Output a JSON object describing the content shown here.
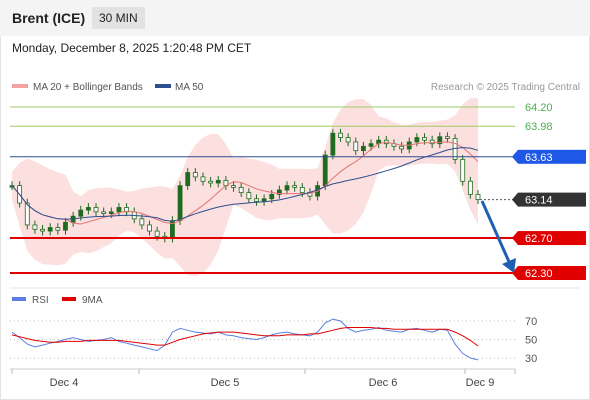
{
  "header": {
    "instrument": "Brent (ICE)",
    "timeframe": "30 MIN",
    "datetime": "Monday, December 8, 2025 1:20:48 PM CET"
  },
  "legend": {
    "ma20_bb": "MA 20 + Bollinger Bands",
    "ma50": "MA 50",
    "credit": "Research © 2025 Trading Central",
    "rsi": "RSI",
    "rsi_ma": "9MA"
  },
  "colors": {
    "ma20": "#e57373",
    "bollinger_fill": "#fcd9d9",
    "ma50": "#2c4f8f",
    "resistance": "#9ccc65",
    "resistance_text": "#4caf50",
    "pivot": "#1f57e7",
    "support": "#e00000",
    "current": "#333333",
    "candle": "#1f6b1f",
    "rsi": "#5a7fe0",
    "rsi_ma": "#e00000",
    "arrow": "#1e5fb3"
  },
  "chart_data": {
    "type": "candlestick",
    "ylim": [
      62.1,
      64.3
    ],
    "levels": [
      {
        "value": 64.2,
        "label": "64.20",
        "role": "resistance"
      },
      {
        "value": 63.98,
        "label": "63.98",
        "role": "resistance"
      },
      {
        "value": 63.63,
        "label": "63.63",
        "role": "pivot"
      },
      {
        "value": 63.14,
        "label": "63.14",
        "role": "current"
      },
      {
        "value": 62.7,
        "label": "62.70",
        "role": "support"
      },
      {
        "value": 62.3,
        "label": "62.30",
        "role": "support"
      }
    ],
    "x_labels": [
      "Dec 4",
      "Dec 5",
      "Dec 6",
      "Dec 9"
    ],
    "close_series": [
      63.3,
      63.1,
      62.85,
      62.8,
      62.78,
      62.82,
      62.79,
      62.88,
      62.95,
      63.02,
      63.05,
      63.0,
      62.98,
      63.0,
      63.05,
      63.0,
      62.92,
      62.85,
      62.78,
      62.72,
      62.7,
      62.9,
      63.3,
      63.45,
      63.4,
      63.35,
      63.33,
      63.36,
      63.3,
      63.28,
      63.22,
      63.15,
      63.12,
      63.15,
      63.2,
      63.25,
      63.3,
      63.28,
      63.22,
      63.18,
      63.3,
      63.65,
      63.9,
      63.85,
      63.8,
      63.7,
      63.75,
      63.78,
      63.82,
      63.78,
      63.75,
      63.72,
      63.8,
      63.85,
      63.82,
      63.78,
      63.86,
      63.84,
      63.6,
      63.35,
      63.2,
      63.14
    ],
    "rsi": {
      "levels": [
        70,
        50,
        30
      ],
      "rsi_series": [
        58,
        52,
        45,
        42,
        44,
        46,
        48,
        50,
        52,
        50,
        48,
        49,
        50,
        52,
        48,
        46,
        44,
        42,
        40,
        38,
        44,
        58,
        62,
        60,
        58,
        57,
        56,
        58,
        55,
        54,
        52,
        51,
        50,
        52,
        55,
        57,
        58,
        56,
        55,
        54,
        58,
        68,
        72,
        70,
        62,
        58,
        60,
        61,
        63,
        60,
        59,
        58,
        61,
        62,
        60,
        58,
        61,
        60,
        45,
        35,
        30,
        28
      ],
      "ma_series": [
        55,
        53,
        51,
        49,
        48,
        47,
        47,
        48,
        48,
        48,
        49,
        49,
        49,
        49,
        49,
        48,
        47,
        46,
        45,
        44,
        44,
        47,
        50,
        52,
        54,
        56,
        57,
        58,
        58,
        58,
        57,
        56,
        55,
        54,
        54,
        54,
        55,
        55,
        55,
        56,
        56,
        58,
        60,
        62,
        63,
        63,
        63,
        63,
        62,
        62,
        61,
        61,
        61,
        61,
        61,
        61,
        61,
        61,
        58,
        54,
        49,
        43
      ]
    }
  }
}
